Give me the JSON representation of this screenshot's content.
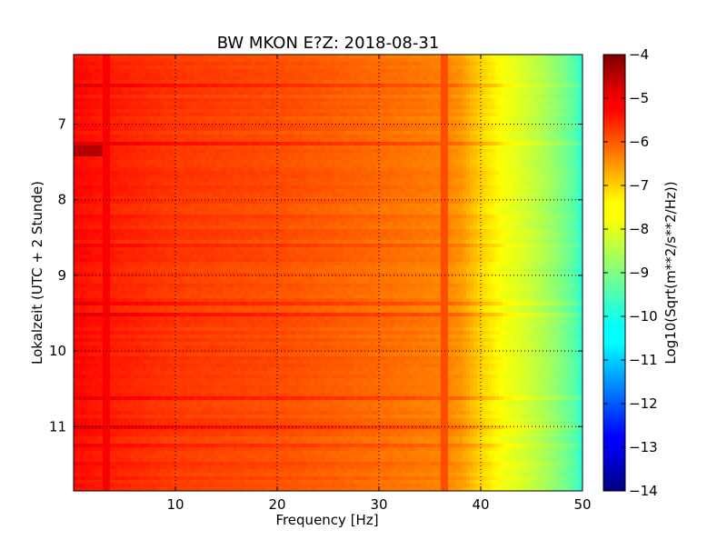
{
  "chart_data": {
    "type": "heatmap",
    "title": "BW MKON E?Z: 2018-08-31",
    "xlabel": "Frequency [Hz]",
    "ylabel": "Lokalzeit (UTC + 2 Stunde)",
    "xlim": [
      0,
      50
    ],
    "ylim": [
      6.08,
      11.85
    ],
    "y_inverted": true,
    "x_ticks": [
      10,
      20,
      30,
      40,
      50
    ],
    "y_ticks": [
      7,
      8,
      9,
      10,
      11
    ],
    "grid": true,
    "colormap": "jet",
    "colorbar": {
      "label": "Log10(Sqrt(m**2/s**2/Hz))",
      "min": -14,
      "max": -4,
      "ticks": [
        -4,
        -5,
        -6,
        -7,
        -8,
        -9,
        -10,
        -11,
        -12,
        -13,
        -14
      ]
    },
    "spectrum_profile": {
      "frequency_hz": [
        0,
        3,
        10,
        20,
        30,
        36,
        38,
        40,
        42,
        44,
        46,
        48,
        49.5,
        50
      ],
      "log_amplitude": [
        -5.3,
        -5.5,
        -5.8,
        -6.0,
        -6.3,
        -6.5,
        -6.7,
        -7.3,
        -7.8,
        -8.1,
        -8.5,
        -9.0,
        -9.5,
        -10.0
      ]
    },
    "notable_features": [
      {
        "time_start": 7.28,
        "time_end": 7.42,
        "freq_start": 0,
        "freq_end": 3,
        "log_amplitude": -4.5
      },
      {
        "freq_hz": 3.2,
        "log_amplitude": -5.2
      },
      {
        "freq_hz": 36.5,
        "log_amplitude": -6.0
      }
    ]
  }
}
